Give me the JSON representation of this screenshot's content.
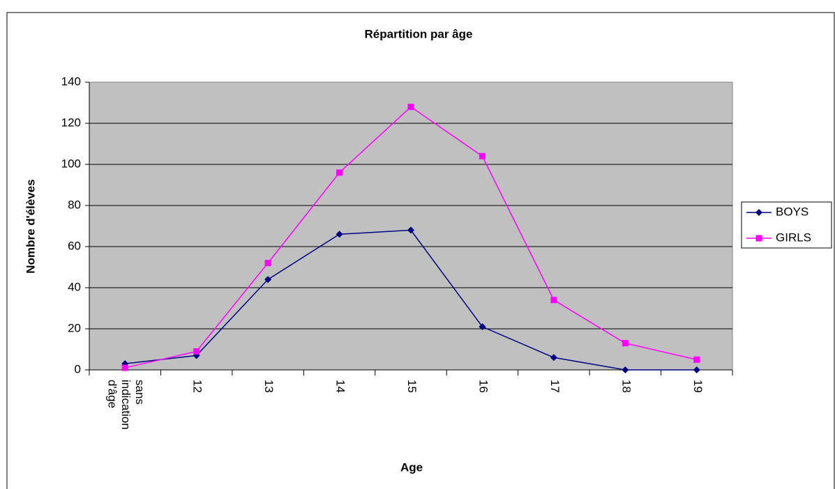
{
  "chart_data": {
    "type": "line",
    "title": "Répartition par âge",
    "x_label": "Age",
    "y_label": "Nombre d'élèves",
    "categories": [
      "sans indication d'âge",
      "12",
      "13",
      "14",
      "15",
      "16",
      "17",
      "18",
      "19"
    ],
    "series": [
      {
        "name": "BOYS",
        "color": "#000080",
        "marker": "diamond",
        "values": [
          3,
          7,
          44,
          66,
          68,
          21,
          6,
          0,
          0
        ]
      },
      {
        "name": "GIRLS",
        "color": "#ff00ff",
        "marker": "square",
        "values": [
          1,
          9,
          52,
          96,
          128,
          104,
          34,
          13,
          5
        ]
      }
    ],
    "ylim": [
      0,
      140
    ],
    "yticks": [
      0,
      20,
      40,
      60,
      80,
      100,
      120,
      140
    ],
    "grid": true,
    "legend": "right"
  }
}
